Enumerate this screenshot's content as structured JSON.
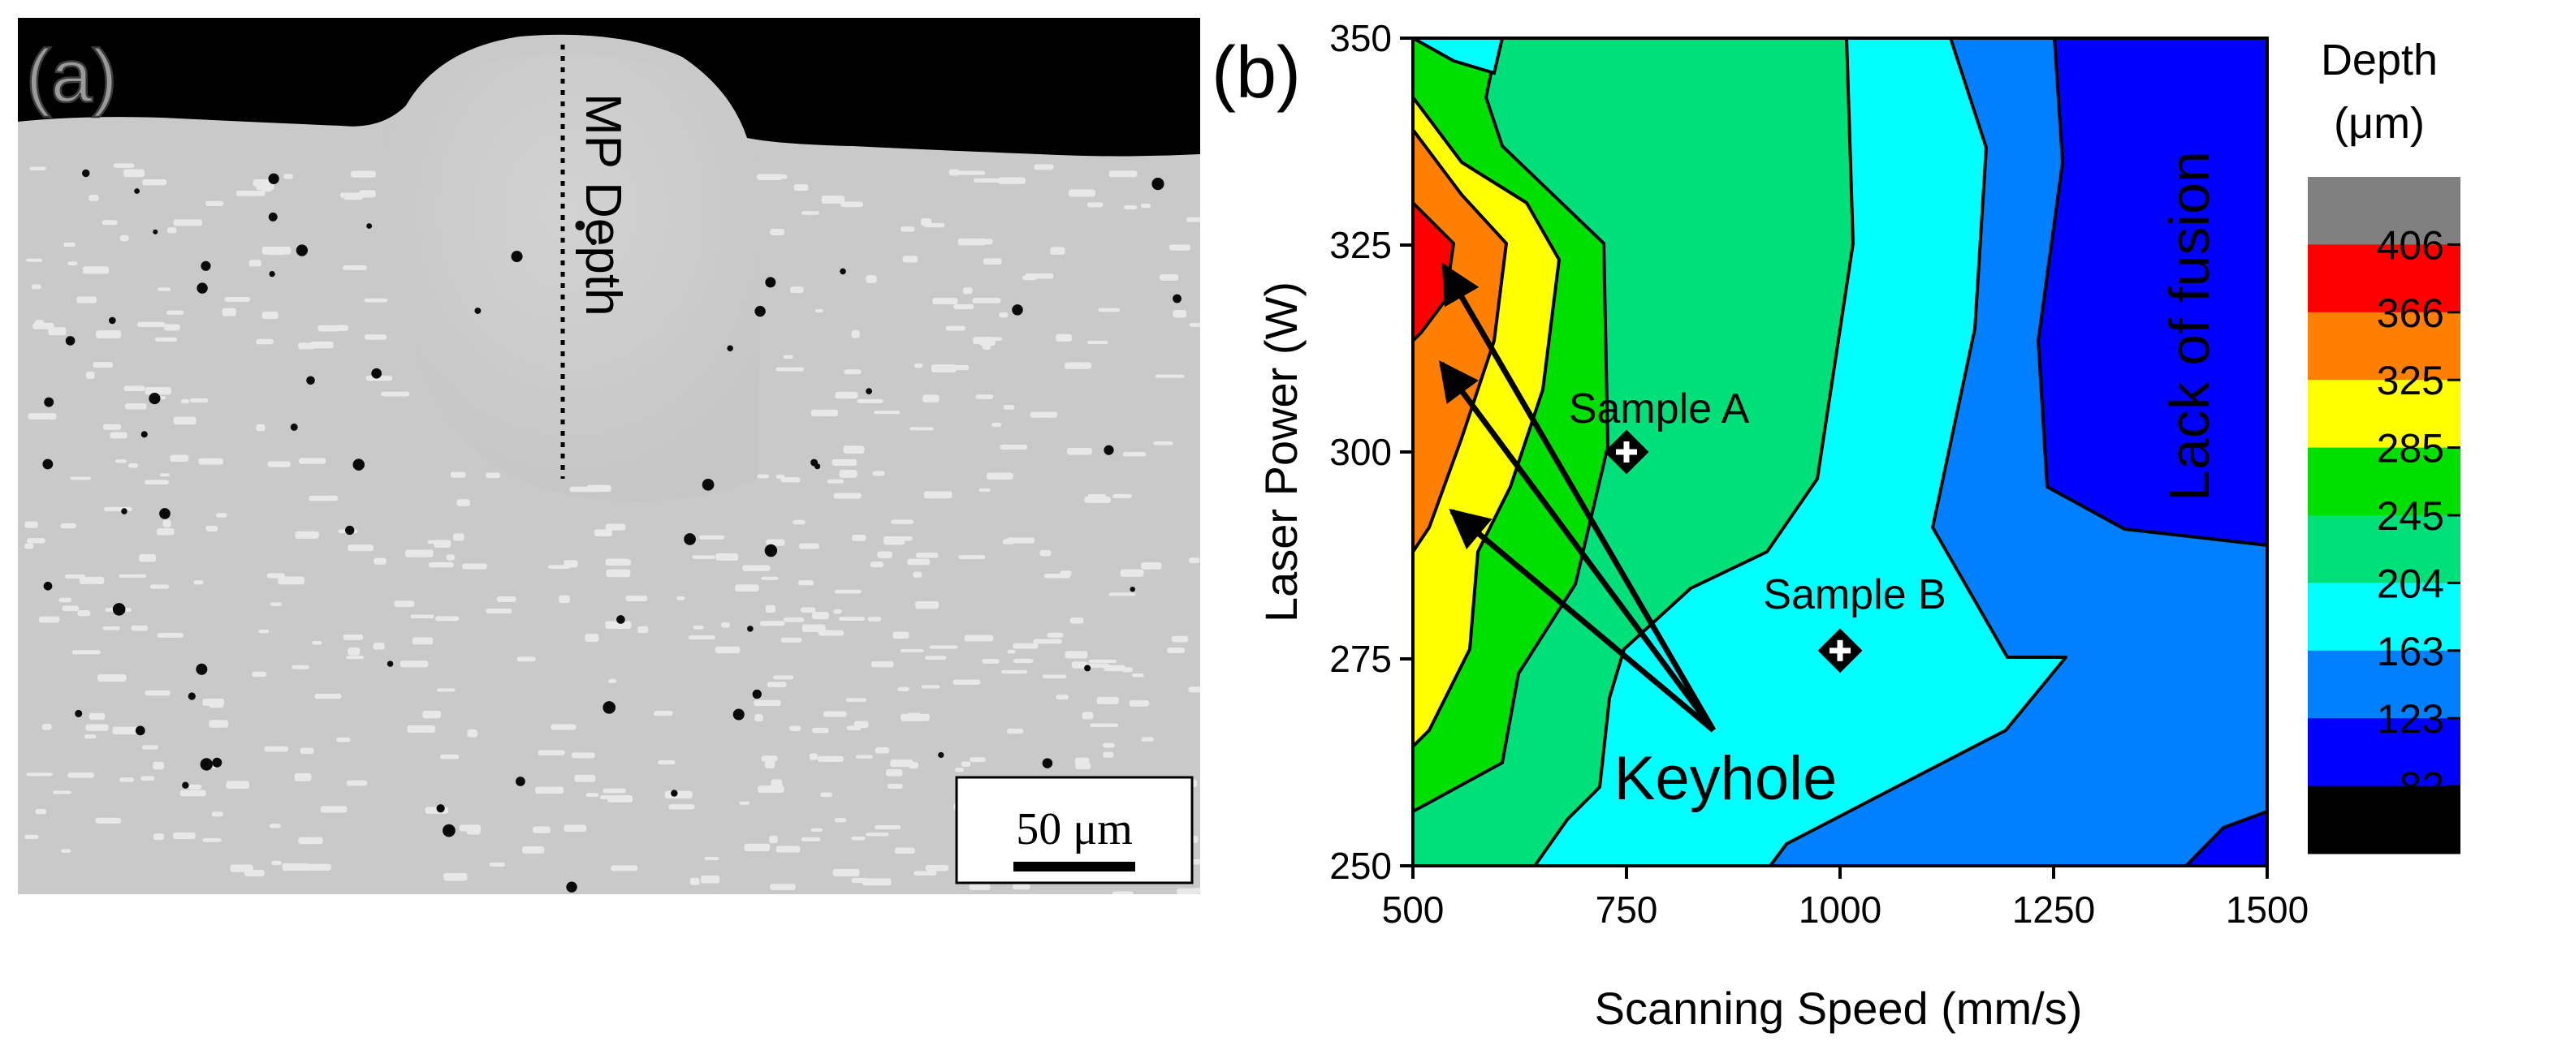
{
  "panel_a": {
    "panel_label": "(a)",
    "annotation": "MP Depth",
    "scale_bar_label": "50 μm"
  },
  "panel_b": {
    "panel_label": "(b)",
    "annotations": {
      "sample_a": "Sample A",
      "sample_b": "Sample B",
      "keyhole": "Keyhole",
      "lack_of_fusion": "Lack of fusion"
    },
    "colorbar": {
      "title_line1": "Depth",
      "title_line2": "(μm)",
      "levels": [
        "406",
        "366",
        "325",
        "285",
        "245",
        "204",
        "163",
        "123",
        "82"
      ],
      "colors": [
        "#808080",
        "#ff0000",
        "#ff8000",
        "#ffff00",
        "#00e000",
        "#00e07a",
        "#00ffff",
        "#0080ff",
        "#0000ff",
        "#000000"
      ]
    }
  },
  "chart_data": {
    "type": "contour",
    "xlabel": "Scanning Speed (mm/s)",
    "ylabel": "Laser Power (W)",
    "xlim": [
      500,
      1500
    ],
    "ylim": [
      250,
      350
    ],
    "x_ticks": [
      "500",
      "750",
      "1000",
      "1250",
      "1500"
    ],
    "y_ticks": [
      "250",
      "275",
      "300",
      "325",
      "350"
    ],
    "z_label": "Depth (μm)",
    "contour_levels": [
      82,
      123,
      163,
      204,
      245,
      285,
      325,
      366,
      406
    ],
    "points": [
      {
        "label": "Sample A",
        "x": 750,
        "y": 300
      },
      {
        "label": "Sample B",
        "x": 1000,
        "y": 276
      }
    ]
  }
}
